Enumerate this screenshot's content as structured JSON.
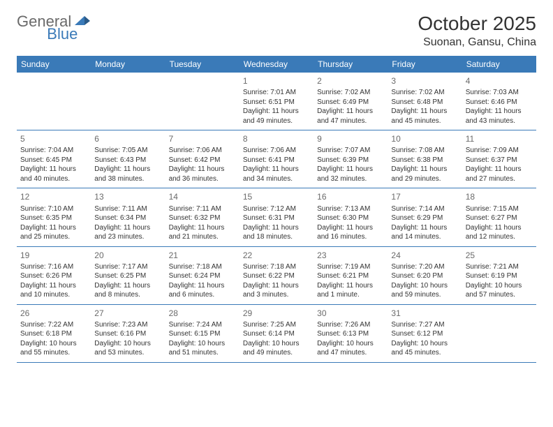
{
  "brand": {
    "part1": "General",
    "part2": "Blue"
  },
  "title": {
    "month": "October 2025",
    "location": "Suonan, Gansu, China"
  },
  "colors": {
    "accent": "#3a7ab8",
    "text": "#333333",
    "muted": "#6a6a6a",
    "bg": "#ffffff"
  },
  "dayHeaders": [
    "Sunday",
    "Monday",
    "Tuesday",
    "Wednesday",
    "Thursday",
    "Friday",
    "Saturday"
  ],
  "weeks": [
    [
      {
        "num": "",
        "sunrise": "",
        "sunset": "",
        "daylight1": "",
        "daylight2": ""
      },
      {
        "num": "",
        "sunrise": "",
        "sunset": "",
        "daylight1": "",
        "daylight2": ""
      },
      {
        "num": "",
        "sunrise": "",
        "sunset": "",
        "daylight1": "",
        "daylight2": ""
      },
      {
        "num": "1",
        "sunrise": "Sunrise: 7:01 AM",
        "sunset": "Sunset: 6:51 PM",
        "daylight1": "Daylight: 11 hours",
        "daylight2": "and 49 minutes."
      },
      {
        "num": "2",
        "sunrise": "Sunrise: 7:02 AM",
        "sunset": "Sunset: 6:49 PM",
        "daylight1": "Daylight: 11 hours",
        "daylight2": "and 47 minutes."
      },
      {
        "num": "3",
        "sunrise": "Sunrise: 7:02 AM",
        "sunset": "Sunset: 6:48 PM",
        "daylight1": "Daylight: 11 hours",
        "daylight2": "and 45 minutes."
      },
      {
        "num": "4",
        "sunrise": "Sunrise: 7:03 AM",
        "sunset": "Sunset: 6:46 PM",
        "daylight1": "Daylight: 11 hours",
        "daylight2": "and 43 minutes."
      }
    ],
    [
      {
        "num": "5",
        "sunrise": "Sunrise: 7:04 AM",
        "sunset": "Sunset: 6:45 PM",
        "daylight1": "Daylight: 11 hours",
        "daylight2": "and 40 minutes."
      },
      {
        "num": "6",
        "sunrise": "Sunrise: 7:05 AM",
        "sunset": "Sunset: 6:43 PM",
        "daylight1": "Daylight: 11 hours",
        "daylight2": "and 38 minutes."
      },
      {
        "num": "7",
        "sunrise": "Sunrise: 7:06 AM",
        "sunset": "Sunset: 6:42 PM",
        "daylight1": "Daylight: 11 hours",
        "daylight2": "and 36 minutes."
      },
      {
        "num": "8",
        "sunrise": "Sunrise: 7:06 AM",
        "sunset": "Sunset: 6:41 PM",
        "daylight1": "Daylight: 11 hours",
        "daylight2": "and 34 minutes."
      },
      {
        "num": "9",
        "sunrise": "Sunrise: 7:07 AM",
        "sunset": "Sunset: 6:39 PM",
        "daylight1": "Daylight: 11 hours",
        "daylight2": "and 32 minutes."
      },
      {
        "num": "10",
        "sunrise": "Sunrise: 7:08 AM",
        "sunset": "Sunset: 6:38 PM",
        "daylight1": "Daylight: 11 hours",
        "daylight2": "and 29 minutes."
      },
      {
        "num": "11",
        "sunrise": "Sunrise: 7:09 AM",
        "sunset": "Sunset: 6:37 PM",
        "daylight1": "Daylight: 11 hours",
        "daylight2": "and 27 minutes."
      }
    ],
    [
      {
        "num": "12",
        "sunrise": "Sunrise: 7:10 AM",
        "sunset": "Sunset: 6:35 PM",
        "daylight1": "Daylight: 11 hours",
        "daylight2": "and 25 minutes."
      },
      {
        "num": "13",
        "sunrise": "Sunrise: 7:11 AM",
        "sunset": "Sunset: 6:34 PM",
        "daylight1": "Daylight: 11 hours",
        "daylight2": "and 23 minutes."
      },
      {
        "num": "14",
        "sunrise": "Sunrise: 7:11 AM",
        "sunset": "Sunset: 6:32 PM",
        "daylight1": "Daylight: 11 hours",
        "daylight2": "and 21 minutes."
      },
      {
        "num": "15",
        "sunrise": "Sunrise: 7:12 AM",
        "sunset": "Sunset: 6:31 PM",
        "daylight1": "Daylight: 11 hours",
        "daylight2": "and 18 minutes."
      },
      {
        "num": "16",
        "sunrise": "Sunrise: 7:13 AM",
        "sunset": "Sunset: 6:30 PM",
        "daylight1": "Daylight: 11 hours",
        "daylight2": "and 16 minutes."
      },
      {
        "num": "17",
        "sunrise": "Sunrise: 7:14 AM",
        "sunset": "Sunset: 6:29 PM",
        "daylight1": "Daylight: 11 hours",
        "daylight2": "and 14 minutes."
      },
      {
        "num": "18",
        "sunrise": "Sunrise: 7:15 AM",
        "sunset": "Sunset: 6:27 PM",
        "daylight1": "Daylight: 11 hours",
        "daylight2": "and 12 minutes."
      }
    ],
    [
      {
        "num": "19",
        "sunrise": "Sunrise: 7:16 AM",
        "sunset": "Sunset: 6:26 PM",
        "daylight1": "Daylight: 11 hours",
        "daylight2": "and 10 minutes."
      },
      {
        "num": "20",
        "sunrise": "Sunrise: 7:17 AM",
        "sunset": "Sunset: 6:25 PM",
        "daylight1": "Daylight: 11 hours",
        "daylight2": "and 8 minutes."
      },
      {
        "num": "21",
        "sunrise": "Sunrise: 7:18 AM",
        "sunset": "Sunset: 6:24 PM",
        "daylight1": "Daylight: 11 hours",
        "daylight2": "and 6 minutes."
      },
      {
        "num": "22",
        "sunrise": "Sunrise: 7:18 AM",
        "sunset": "Sunset: 6:22 PM",
        "daylight1": "Daylight: 11 hours",
        "daylight2": "and 3 minutes."
      },
      {
        "num": "23",
        "sunrise": "Sunrise: 7:19 AM",
        "sunset": "Sunset: 6:21 PM",
        "daylight1": "Daylight: 11 hours",
        "daylight2": "and 1 minute."
      },
      {
        "num": "24",
        "sunrise": "Sunrise: 7:20 AM",
        "sunset": "Sunset: 6:20 PM",
        "daylight1": "Daylight: 10 hours",
        "daylight2": "and 59 minutes."
      },
      {
        "num": "25",
        "sunrise": "Sunrise: 7:21 AM",
        "sunset": "Sunset: 6:19 PM",
        "daylight1": "Daylight: 10 hours",
        "daylight2": "and 57 minutes."
      }
    ],
    [
      {
        "num": "26",
        "sunrise": "Sunrise: 7:22 AM",
        "sunset": "Sunset: 6:18 PM",
        "daylight1": "Daylight: 10 hours",
        "daylight2": "and 55 minutes."
      },
      {
        "num": "27",
        "sunrise": "Sunrise: 7:23 AM",
        "sunset": "Sunset: 6:16 PM",
        "daylight1": "Daylight: 10 hours",
        "daylight2": "and 53 minutes."
      },
      {
        "num": "28",
        "sunrise": "Sunrise: 7:24 AM",
        "sunset": "Sunset: 6:15 PM",
        "daylight1": "Daylight: 10 hours",
        "daylight2": "and 51 minutes."
      },
      {
        "num": "29",
        "sunrise": "Sunrise: 7:25 AM",
        "sunset": "Sunset: 6:14 PM",
        "daylight1": "Daylight: 10 hours",
        "daylight2": "and 49 minutes."
      },
      {
        "num": "30",
        "sunrise": "Sunrise: 7:26 AM",
        "sunset": "Sunset: 6:13 PM",
        "daylight1": "Daylight: 10 hours",
        "daylight2": "and 47 minutes."
      },
      {
        "num": "31",
        "sunrise": "Sunrise: 7:27 AM",
        "sunset": "Sunset: 6:12 PM",
        "daylight1": "Daylight: 10 hours",
        "daylight2": "and 45 minutes."
      },
      {
        "num": "",
        "sunrise": "",
        "sunset": "",
        "daylight1": "",
        "daylight2": ""
      }
    ]
  ]
}
